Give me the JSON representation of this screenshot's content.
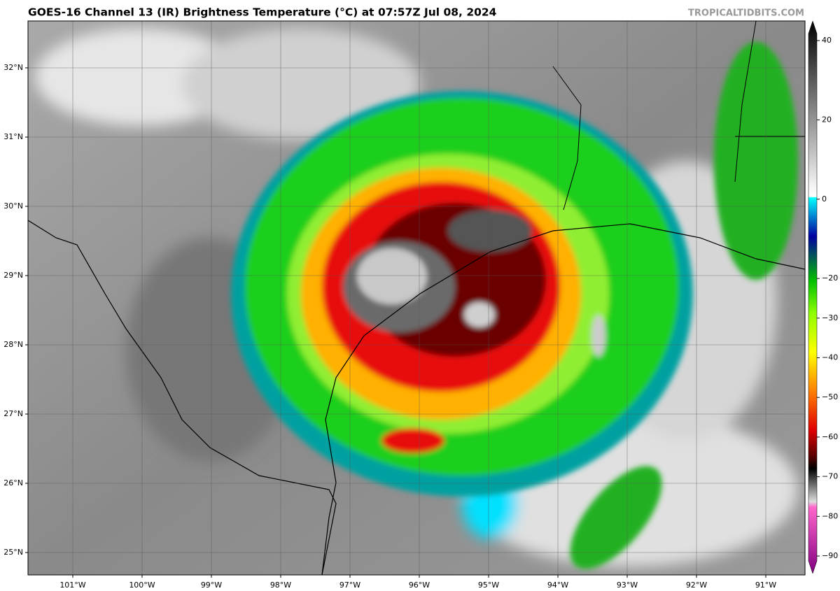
{
  "header": {
    "title": "GOES-16 Channel 13 (IR) Brightness Temperature (°C) at 07:57Z Jul 08, 2024",
    "credit": "TROPICALTIDBITS.COM"
  },
  "map": {
    "lat_labels": [
      {
        "value": 32,
        "label": "32°N"
      },
      {
        "value": 31,
        "label": "31°N"
      },
      {
        "value": 30,
        "label": "30°N"
      },
      {
        "value": 29,
        "label": "29°N"
      },
      {
        "value": 28,
        "label": "28°N"
      },
      {
        "value": 27,
        "label": "27°N"
      },
      {
        "value": 26,
        "label": "26°N"
      },
      {
        "value": 25,
        "label": "25°N"
      }
    ],
    "lon_labels": [
      {
        "value": -101,
        "label": "101°W"
      },
      {
        "value": -100,
        "label": "100°W"
      },
      {
        "value": -99,
        "label": "99°W"
      },
      {
        "value": -98,
        "label": "98°W"
      },
      {
        "value": -97,
        "label": "97°W"
      },
      {
        "value": -96,
        "label": "96°W"
      },
      {
        "value": -95,
        "label": "95°W"
      },
      {
        "value": -94,
        "label": "94°W"
      },
      {
        "value": -93,
        "label": "93°W"
      },
      {
        "value": -92,
        "label": "92°W"
      },
      {
        "value": -91,
        "label": "91°W"
      }
    ]
  },
  "colorbar": {
    "ticks": [
      40,
      20,
      0,
      {
        "value": -20,
        "label": "−20"
      },
      {
        "value": -30,
        "label": "−30"
      },
      {
        "value": -40,
        "label": "−40"
      },
      {
        "value": -50,
        "label": "−50"
      },
      {
        "value": -60,
        "label": "−60"
      },
      {
        "value": -70,
        "label": "−70"
      },
      {
        "value": -80,
        "label": "−80"
      },
      {
        "value": -90,
        "label": "−90"
      }
    ]
  }
}
